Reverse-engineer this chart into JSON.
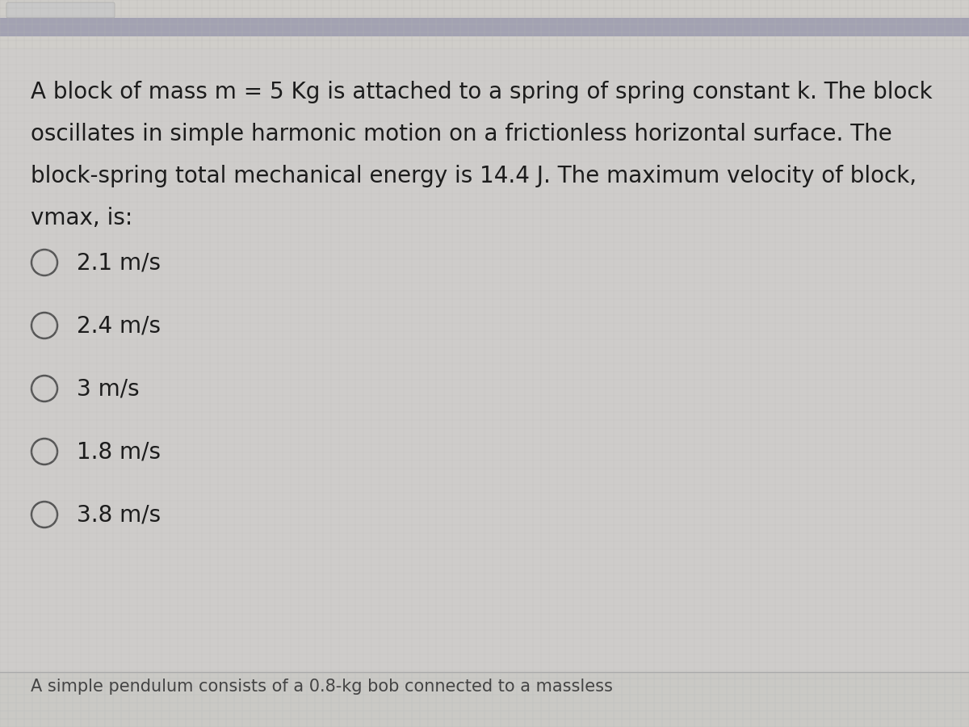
{
  "background_main": "#ceccca",
  "background_top_bar": "#9999aa",
  "background_top_light": "#d4d3d0",
  "question_text_lines": [
    "A block of mass m = 5 Kg is attached to a spring of spring constant k. The block",
    "oscillates in simple harmonic motion on a frictionless horizontal surface. The",
    "block-spring total mechanical energy is 14.4 J. The maximum velocity of block,",
    "vmax, is:"
  ],
  "options": [
    "2.1 m/s",
    "2.4 m/s",
    "3 m/s",
    "1.8 m/s",
    "3.8 m/s"
  ],
  "footer_text": "A simple pendulum consists of a 0.8-kg bob connected to a massless",
  "text_color": "#1c1c1c",
  "footer_text_color": "#444444",
  "circle_edge_color": "#555555",
  "font_size_question": 20,
  "font_size_options": 20,
  "font_size_footer": 15,
  "grid_color": "#bbbbbb",
  "grid_alpha": 0.4
}
